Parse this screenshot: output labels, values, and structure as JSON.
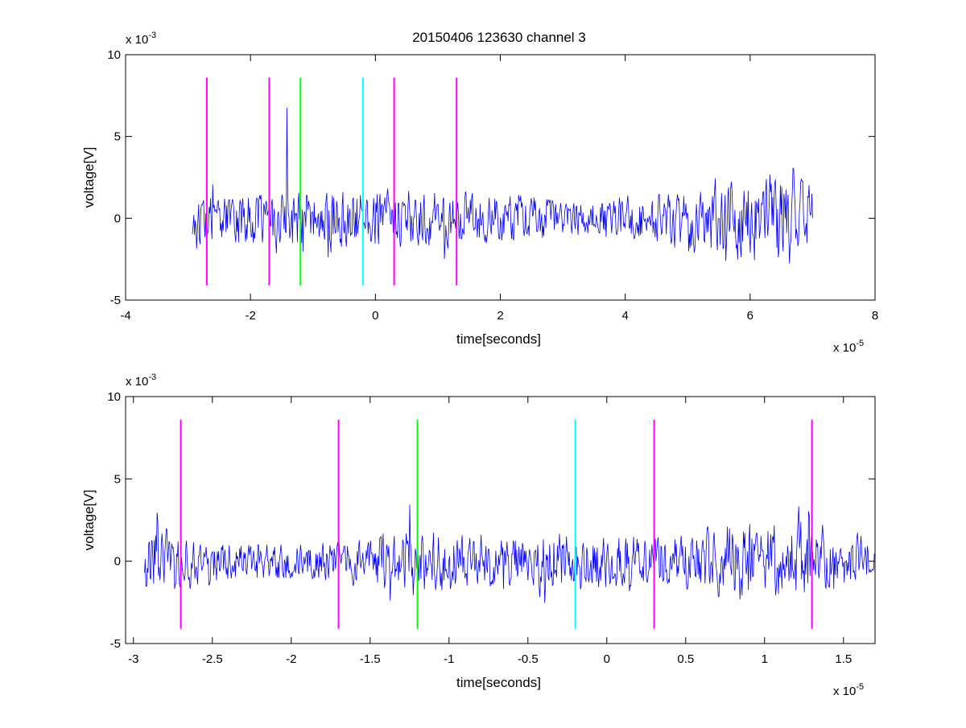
{
  "figure": {
    "title": "20150406 123630 channel 3"
  },
  "chart_data": [
    {
      "type": "line",
      "title": "20150406 123630 channel 3",
      "xlabel": "time[seconds]",
      "ylabel": "voltage[V]",
      "xlim": [
        -4,
        8
      ],
      "ylim": [
        -5,
        10
      ],
      "x_scale_label": "x 10",
      "x_scale_exp": "-5",
      "y_scale_label": "x 10",
      "y_scale_exp": "-3",
      "x_ticks": [
        -4,
        -2,
        0,
        2,
        4,
        6,
        8
      ],
      "x_tick_labels": [
        "-4",
        "-2",
        "0",
        "2",
        "4",
        "6",
        "8"
      ],
      "y_ticks": [
        -5,
        0,
        5,
        10
      ],
      "y_tick_labels": [
        "-5",
        "0",
        "5",
        "10"
      ],
      "grid": false,
      "series": [
        {
          "color": "#0000ff",
          "x_range": [
            -2.93,
            7.0
          ],
          "envelope": [
            [
              -2.9,
              -2.2,
              0.3,
              2.1
            ],
            [
              -2.75,
              -1.2,
              3.3,
              2.3
            ],
            [
              -2.5,
              -1.6,
              1.2,
              1.4
            ],
            [
              -2.0,
              -1.4,
              1.3,
              1.4
            ],
            [
              -1.6,
              -2.2,
              1.6,
              1.7
            ],
            [
              -1.38,
              -1.3,
              7.8,
              1.6
            ],
            [
              -1.2,
              -2.0,
              1.8,
              1.8
            ],
            [
              -0.5,
              -2.6,
              2.4,
              1.8
            ],
            [
              0.0,
              -2.0,
              1.8,
              1.7
            ],
            [
              1.0,
              -2.6,
              2.0,
              1.6
            ],
            [
              2.0,
              -1.6,
              1.6,
              1.4
            ],
            [
              3.0,
              -1.0,
              1.0,
              1.0
            ],
            [
              4.0,
              -1.2,
              1.6,
              1.3
            ],
            [
              5.0,
              -2.0,
              2.0,
              1.8
            ],
            [
              5.5,
              -2.5,
              2.5,
              2.2
            ],
            [
              6.0,
              -3.0,
              2.8,
              2.4
            ],
            [
              6.3,
              -3.3,
              3.0,
              2.6
            ],
            [
              6.5,
              -3.6,
              3.8,
              3.0
            ],
            [
              7.0,
              -3.2,
              1.8,
              2.0
            ]
          ],
          "noise_seed": 17
        }
      ],
      "markers": [
        {
          "x": -2.7,
          "color": "#ff00ff"
        },
        {
          "x": -1.7,
          "color": "#ff00ff"
        },
        {
          "x": -1.2,
          "color": "#00ff00"
        },
        {
          "x": -0.2,
          "color": "#00ffff"
        },
        {
          "x": 0.3,
          "color": "#ff00ff"
        },
        {
          "x": 1.3,
          "color": "#ff00ff"
        }
      ],
      "marker_range": [
        -4.1,
        8.6
      ]
    },
    {
      "type": "line",
      "title": "",
      "xlabel": "time[seconds]",
      "ylabel": "voltage[V]",
      "xlim": [
        -3.05,
        1.7
      ],
      "ylim": [
        -5,
        10
      ],
      "x_scale_label": "x 10",
      "x_scale_exp": "-5",
      "y_scale_label": "x 10",
      "y_scale_exp": "-3",
      "x_ticks": [
        -3,
        -2.5,
        -2,
        -1.5,
        -1,
        -0.5,
        0,
        0.5,
        1,
        1.5
      ],
      "x_tick_labels": [
        "-3",
        "-2.5",
        "-2",
        "-1.5",
        "-1",
        "-0.5",
        "0",
        "0.5",
        "1",
        "1.5"
      ],
      "y_ticks": [
        -5,
        0,
        5,
        10
      ],
      "y_tick_labels": [
        "-5",
        "0",
        "5",
        "10"
      ],
      "grid": false,
      "series": [
        {
          "color": "#0000ff",
          "x_range": [
            -2.93,
            1.7
          ],
          "envelope": [
            [
              -2.93,
              -2.2,
              0.3,
              1.8
            ],
            [
              -2.84,
              -1.4,
              3.3,
              2.2
            ],
            [
              -2.7,
              -1.8,
              1.4,
              1.4
            ],
            [
              -2.3,
              -1.0,
              1.0,
              1.0
            ],
            [
              -2.0,
              -1.0,
              1.0,
              1.0
            ],
            [
              -1.7,
              -1.2,
              1.2,
              1.2
            ],
            [
              -1.5,
              -1.8,
              1.5,
              1.6
            ],
            [
              -1.38,
              -2.4,
              7.8,
              1.7
            ],
            [
              -1.2,
              -2.0,
              1.8,
              1.8
            ],
            [
              -0.8,
              -1.4,
              1.6,
              1.5
            ],
            [
              -0.5,
              -2.0,
              2.2,
              1.7
            ],
            [
              -0.38,
              -2.6,
              2.4,
              2.0
            ],
            [
              -0.2,
              -1.6,
              1.6,
              1.4
            ],
            [
              0.0,
              -2.2,
              1.6,
              1.7
            ],
            [
              0.3,
              -1.4,
              1.4,
              1.4
            ],
            [
              0.6,
              -2.0,
              2.0,
              1.8
            ],
            [
              0.84,
              -2.6,
              3.2,
              2.3
            ],
            [
              1.0,
              -2.4,
              3.0,
              2.2
            ],
            [
              1.2,
              -2.0,
              3.4,
              2.3
            ],
            [
              1.5,
              -1.6,
              2.0,
              1.6
            ],
            [
              1.7,
              -0.6,
              1.8,
              1.3
            ]
          ],
          "noise_seed": 17
        }
      ],
      "markers": [
        {
          "x": -2.7,
          "color": "#ff00ff"
        },
        {
          "x": -1.7,
          "color": "#ff00ff"
        },
        {
          "x": -1.2,
          "color": "#00ff00"
        },
        {
          "x": -0.2,
          "color": "#00ffff"
        },
        {
          "x": 0.3,
          "color": "#ff00ff"
        },
        {
          "x": 1.3,
          "color": "#ff00ff"
        }
      ],
      "marker_range": [
        -4.1,
        8.6
      ]
    }
  ]
}
